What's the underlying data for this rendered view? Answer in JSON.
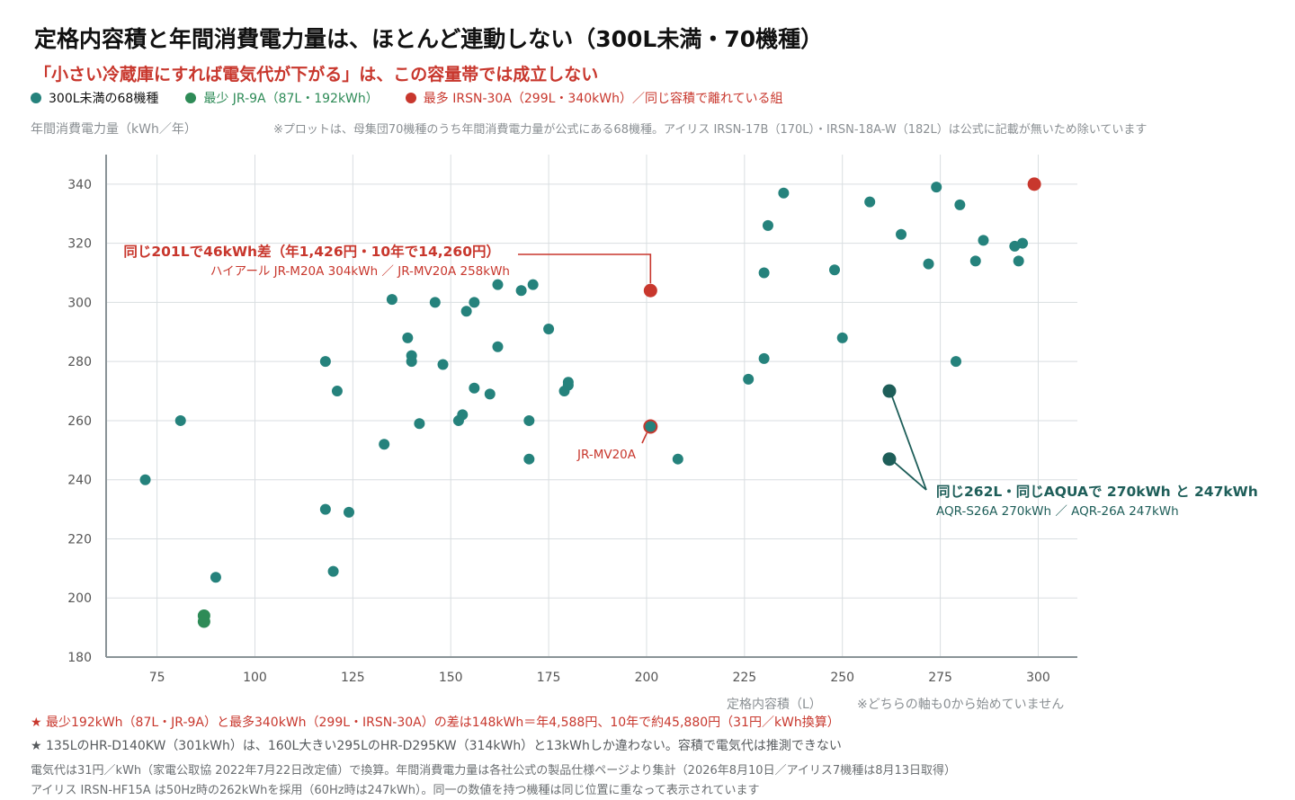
{
  "title": "定格内容積と年間消費電力量は、ほとんど連動しない（300L未満・70機種）",
  "subtitle": "「小さい冷蔵庫にすれば電気代が下がる」は、この容量帯では成立しない",
  "legend": [
    {
      "label": "300L未満の68機種",
      "color": "#25827c"
    },
    {
      "label": "最少 JR-9A（87L・192kWh）",
      "color": "#2e8b57"
    },
    {
      "label": "最多 IRSN-30A（299L・340kWh）／同じ容積で離れている組",
      "color": "#c8372d"
    }
  ],
  "ylabel": "年間消費電力量（kWh／年）",
  "plot_note": "※プロットは、母集団70機種のうち年間消費電力量が公式にある68機種。アイリス IRSN-17B（170L）・IRSN-18A-W（182L）は公式に記載が無いため除いています",
  "xlabel": "定格内容積（L）",
  "axis_note": "※どちらの軸も0から始めていません",
  "colors": {
    "main": "#25827c",
    "min": "#2e8b57",
    "max": "#c8372d",
    "pair": "#1e5e59",
    "grid": "#d9dee1",
    "axis": "#8a9397"
  },
  "chart_data": {
    "type": "scatter",
    "xlabel": "定格内容積（L）",
    "ylabel": "年間消費電力量（kWh／年）",
    "xlim": [
      62,
      310
    ],
    "ylim": [
      180,
      350
    ],
    "xticks": [
      75,
      100,
      125,
      150,
      175,
      200,
      225,
      250,
      275,
      300
    ],
    "yticks": [
      180,
      200,
      220,
      240,
      260,
      280,
      300,
      320,
      340
    ],
    "grid": true,
    "points": [
      {
        "x": 72,
        "y": 240
      },
      {
        "x": 81,
        "y": 260
      },
      {
        "x": 90,
        "y": 207
      },
      {
        "x": 118,
        "y": 280
      },
      {
        "x": 118,
        "y": 230
      },
      {
        "x": 120,
        "y": 209
      },
      {
        "x": 121,
        "y": 270
      },
      {
        "x": 124,
        "y": 229
      },
      {
        "x": 133,
        "y": 252
      },
      {
        "x": 135,
        "y": 301
      },
      {
        "x": 139,
        "y": 288
      },
      {
        "x": 140,
        "y": 282
      },
      {
        "x": 140,
        "y": 280
      },
      {
        "x": 142,
        "y": 259
      },
      {
        "x": 146,
        "y": 300
      },
      {
        "x": 148,
        "y": 279
      },
      {
        "x": 152,
        "y": 260
      },
      {
        "x": 153,
        "y": 262
      },
      {
        "x": 154,
        "y": 297
      },
      {
        "x": 156,
        "y": 300
      },
      {
        "x": 156,
        "y": 271
      },
      {
        "x": 160,
        "y": 269
      },
      {
        "x": 162,
        "y": 306
      },
      {
        "x": 162,
        "y": 285
      },
      {
        "x": 168,
        "y": 304
      },
      {
        "x": 170,
        "y": 260
      },
      {
        "x": 170,
        "y": 247
      },
      {
        "x": 171,
        "y": 306
      },
      {
        "x": 175,
        "y": 291
      },
      {
        "x": 179,
        "y": 270
      },
      {
        "x": 180,
        "y": 273
      },
      {
        "x": 180,
        "y": 272
      },
      {
        "x": 208,
        "y": 247
      },
      {
        "x": 226,
        "y": 274
      },
      {
        "x": 230,
        "y": 310
      },
      {
        "x": 230,
        "y": 281
      },
      {
        "x": 231,
        "y": 326
      },
      {
        "x": 235,
        "y": 337
      },
      {
        "x": 248,
        "y": 311
      },
      {
        "x": 250,
        "y": 288
      },
      {
        "x": 257,
        "y": 334
      },
      {
        "x": 265,
        "y": 323
      },
      {
        "x": 272,
        "y": 313
      },
      {
        "x": 274,
        "y": 339
      },
      {
        "x": 279,
        "y": 280
      },
      {
        "x": 280,
        "y": 333
      },
      {
        "x": 284,
        "y": 314
      },
      {
        "x": 286,
        "y": 321
      },
      {
        "x": 294,
        "y": 319
      },
      {
        "x": 295,
        "y": 314
      },
      {
        "x": 296,
        "y": 320
      }
    ],
    "highlights": {
      "min": [
        {
          "x": 87,
          "y": 194
        },
        {
          "x": 87,
          "y": 192
        }
      ],
      "max": [
        {
          "x": 299,
          "y": 340
        }
      ],
      "pair_red": [
        {
          "x": 201,
          "y": 304
        },
        {
          "x": 201,
          "y": 258
        }
      ],
      "pair_dark": [
        {
          "x": 262,
          "y": 270
        },
        {
          "x": 262,
          "y": 247
        }
      ]
    },
    "annotations": {
      "red_title": "同じ201Lで46kWh差（年1,426円・10年で14,260円）",
      "red_sub": "ハイアール JR-M20A 304kWh ／ JR-MV20A 258kWh",
      "red_point_label": "JR-MV20A",
      "dark_title": "同じ262L・同じAQUAで 270kWh と 247kWh",
      "dark_sub": "AQR-S26A 270kWh ／ AQR-26A 247kWh"
    }
  },
  "footnotes": [
    "★ 最少192kWh（87L・JR-9A）と最多340kWh（299L・IRSN-30A）の差は148kWh＝年4,588円、10年で約45,880円（31円／kWh換算）",
    "★ 135LのHR-D140KW（301kWh）は、160L大きい295LのHR-D295KW（314kWh）と13kWhしか違わない。容積で電気代は推測できない",
    "電気代は31円／kWh（家電公取協 2022年7月22日改定値）で換算。年間消費電力量は各社公式の製品仕様ページより集計（2026年8月10日／アイリス7機種は8月13日取得）",
    "アイリス IRSN-HF15A は50Hz時の262kWhを採用（60Hz時は247kWh）。同一の数値を持つ機種は同じ位置に重なって表示されています"
  ]
}
